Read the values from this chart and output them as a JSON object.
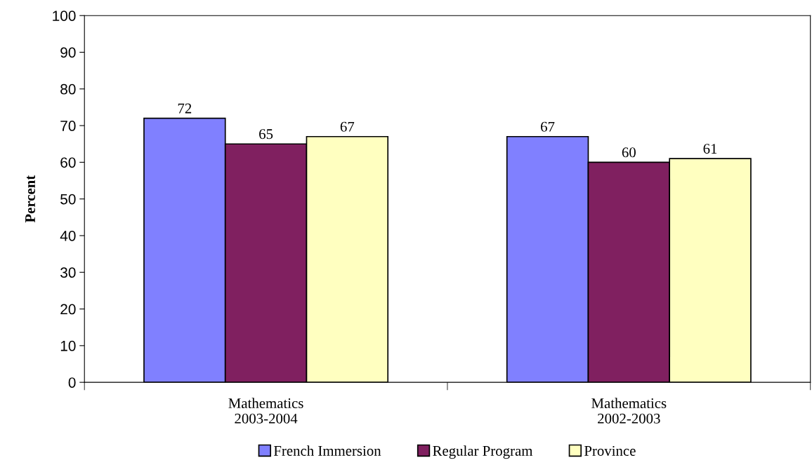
{
  "chart_data": {
    "type": "bar",
    "ylabel": "Percent",
    "categories": [
      "Mathematics\n2003-2004",
      "Mathematics\n2002-2003"
    ],
    "series": [
      {
        "name": "French Immersion",
        "color": "#8080ff",
        "values": [
          72,
          67
        ]
      },
      {
        "name": "Regular Program",
        "color": "#802060",
        "values": [
          65,
          60
        ]
      },
      {
        "name": "Province",
        "color": "#ffffc0",
        "values": [
          67,
          61
        ]
      }
    ],
    "ylim": [
      0,
      100
    ],
    "yticks": [
      0,
      10,
      20,
      30,
      40,
      50,
      60,
      70,
      80,
      90,
      100
    ],
    "data_labels": true,
    "legend": "bottom",
    "grid": false
  }
}
